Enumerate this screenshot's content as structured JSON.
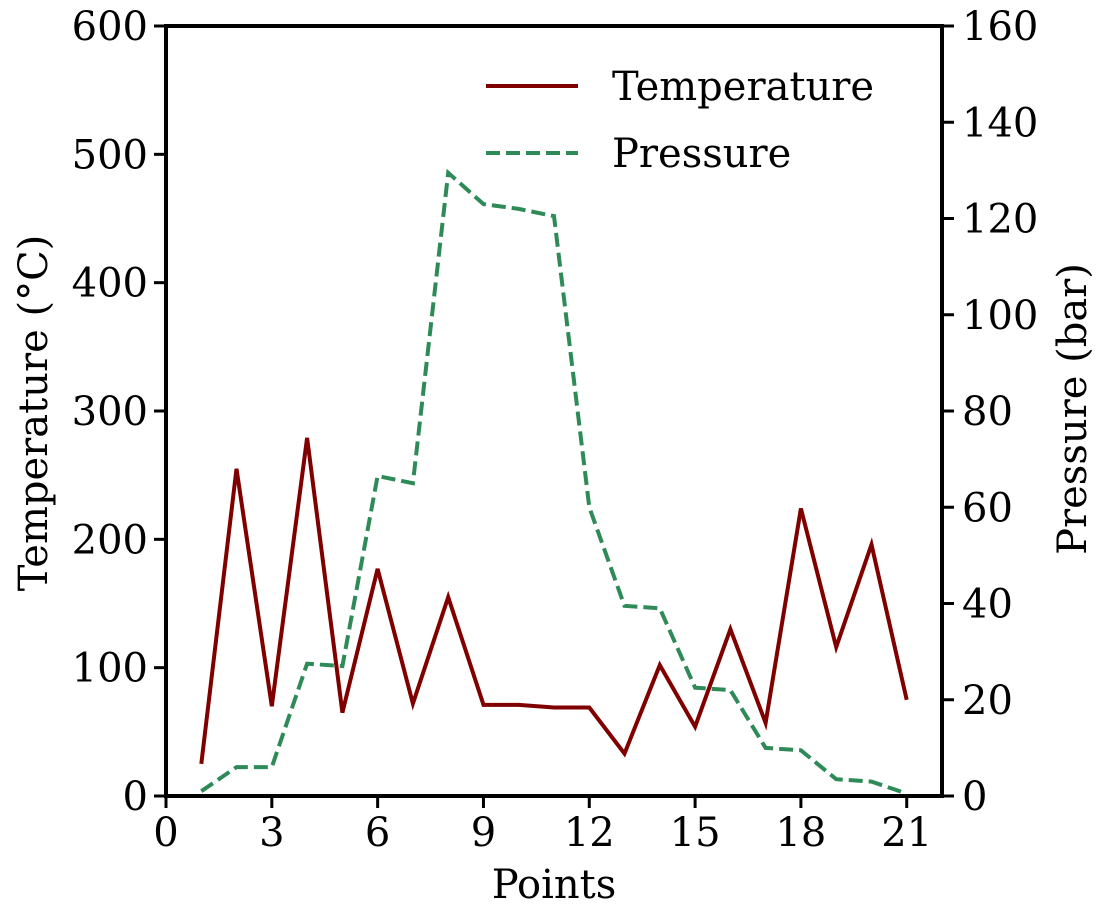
{
  "chart_data": {
    "type": "line",
    "xlabel": "Points",
    "ylabel_left": "Temperature (°C)",
    "ylabel_right": "Pressure (bar)",
    "xlim": [
      0,
      22
    ],
    "ylim_left": [
      0,
      600
    ],
    "ylim_right": [
      0,
      160
    ],
    "x_ticks": [
      0,
      3,
      6,
      9,
      12,
      15,
      18,
      21
    ],
    "y_left_ticks": [
      0,
      100,
      200,
      300,
      400,
      500,
      600
    ],
    "y_right_ticks": [
      0,
      20,
      40,
      60,
      80,
      100,
      120,
      140,
      160
    ],
    "grid": false,
    "legend_position": "top-right",
    "x": [
      1,
      2,
      3,
      4,
      5,
      6,
      7,
      8,
      9,
      10,
      11,
      12,
      13,
      14,
      15,
      16,
      17,
      18,
      19,
      20,
      21
    ],
    "series": [
      {
        "name": "Temperature",
        "axis": "left",
        "color": "#800000",
        "dash": "solid",
        "values": [
          25,
          255,
          70,
          279,
          65,
          177,
          72,
          155,
          71,
          71,
          69,
          69,
          33,
          102,
          54,
          130,
          57,
          224,
          116,
          196,
          75
        ]
      },
      {
        "name": "Pressure",
        "axis": "right",
        "color": "#2e8b57",
        "dash": "dashed",
        "values": [
          1,
          6,
          6,
          27.5,
          27,
          66.5,
          65,
          129.5,
          123,
          122,
          120.5,
          60,
          39.5,
          39,
          22.5,
          22,
          10,
          9.5,
          3.5,
          3,
          0.5
        ]
      }
    ]
  }
}
